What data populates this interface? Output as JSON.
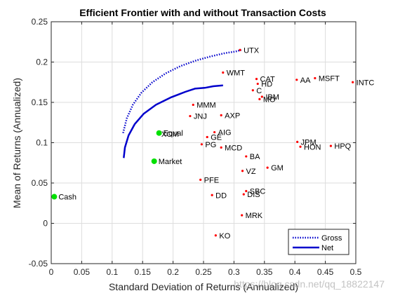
{
  "watermark": "https://blog.csdn.net/qq_18822147",
  "chart_data": {
    "type": "scatter",
    "title": "Efficient Frontier with and without Transaction Costs",
    "xlabel": "Standard Deviation of Returns (Annualized)",
    "ylabel": "Mean of Returns (Annualized)",
    "xlim": [
      0,
      0.5
    ],
    "ylim": [
      -0.05,
      0.25
    ],
    "xticks": [
      "0",
      "0.05",
      "0.1",
      "0.15",
      "0.2",
      "0.25",
      "0.3",
      "0.35",
      "0.4",
      "0.45",
      "0.5"
    ],
    "yticks": [
      "-0.05",
      "0",
      "0.05",
      "0.1",
      "0.15",
      "0.2",
      "0.25"
    ],
    "grid": true,
    "legend_position": "bottom-right",
    "colors": {
      "asset": "#ff0000",
      "highlight": "#00e000",
      "frontier": "#0000cc",
      "axis": "#262626",
      "grid": "#dddddd"
    },
    "series": [
      {
        "name": "Gross",
        "style": "dotted",
        "x": [
          0.118,
          0.124,
          0.134,
          0.148,
          0.166,
          0.188,
          0.212,
          0.238,
          0.262,
          0.285,
          0.302,
          0.312
        ],
        "y": [
          0.112,
          0.13,
          0.147,
          0.162,
          0.175,
          0.186,
          0.195,
          0.202,
          0.207,
          0.211,
          0.213,
          0.215
        ]
      },
      {
        "name": "Net",
        "style": "solid",
        "x": [
          0.119,
          0.121,
          0.127,
          0.137,
          0.152,
          0.172,
          0.196,
          0.22,
          0.236,
          0.252,
          0.266,
          0.282
        ],
        "y": [
          0.081,
          0.094,
          0.109,
          0.123,
          0.136,
          0.147,
          0.156,
          0.163,
          0.167,
          0.168,
          0.17,
          0.171
        ]
      }
    ],
    "points": [
      {
        "label": "UTX",
        "x": 0.31,
        "y": 0.215
      },
      {
        "label": "WMT",
        "x": 0.282,
        "y": 0.187
      },
      {
        "label": "CAT",
        "x": 0.337,
        "y": 0.179
      },
      {
        "label": "AA",
        "x": 0.403,
        "y": 0.178
      },
      {
        "label": "MSFT",
        "x": 0.433,
        "y": 0.18
      },
      {
        "label": "INTC",
        "x": 0.495,
        "y": 0.175
      },
      {
        "label": "HD",
        "x": 0.339,
        "y": 0.173
      },
      {
        "label": "C",
        "x": 0.331,
        "y": 0.165
      },
      {
        "label": "IBM",
        "x": 0.346,
        "y": 0.157
      },
      {
        "label": "MO",
        "x": 0.342,
        "y": 0.154
      },
      {
        "label": "MMM",
        "x": 0.233,
        "y": 0.147
      },
      {
        "label": "JNJ",
        "x": 0.228,
        "y": 0.133
      },
      {
        "label": "AXP",
        "x": 0.279,
        "y": 0.134
      },
      {
        "label": "XOM",
        "x": 0.175,
        "y": 0.111
      },
      {
        "label": "Equal",
        "x": 0.177,
        "y": 0.112,
        "highlight": true
      },
      {
        "label": "AIG",
        "x": 0.268,
        "y": 0.113
      },
      {
        "label": "GE",
        "x": 0.256,
        "y": 0.107
      },
      {
        "label": "PG",
        "x": 0.247,
        "y": 0.098
      },
      {
        "label": "MCD",
        "x": 0.279,
        "y": 0.094
      },
      {
        "label": "JPM",
        "x": 0.404,
        "y": 0.101
      },
      {
        "label": "HON",
        "x": 0.409,
        "y": 0.095
      },
      {
        "label": "HPQ",
        "x": 0.459,
        "y": 0.096
      },
      {
        "label": "BA",
        "x": 0.32,
        "y": 0.083
      },
      {
        "label": "Market",
        "x": 0.169,
        "y": 0.077,
        "highlight": true
      },
      {
        "label": "GM",
        "x": 0.355,
        "y": 0.069
      },
      {
        "label": "VZ",
        "x": 0.314,
        "y": 0.065
      },
      {
        "label": "PFE",
        "x": 0.245,
        "y": 0.054
      },
      {
        "label": "SBC",
        "x": 0.32,
        "y": 0.04
      },
      {
        "label": "DD",
        "x": 0.264,
        "y": 0.035
      },
      {
        "label": "DIS",
        "x": 0.316,
        "y": 0.036
      },
      {
        "label": "Cash",
        "x": 0.005,
        "y": 0.033,
        "highlight": true
      },
      {
        "label": "MRK",
        "x": 0.313,
        "y": 0.01
      },
      {
        "label": "KO",
        "x": 0.27,
        "y": -0.015
      }
    ]
  }
}
